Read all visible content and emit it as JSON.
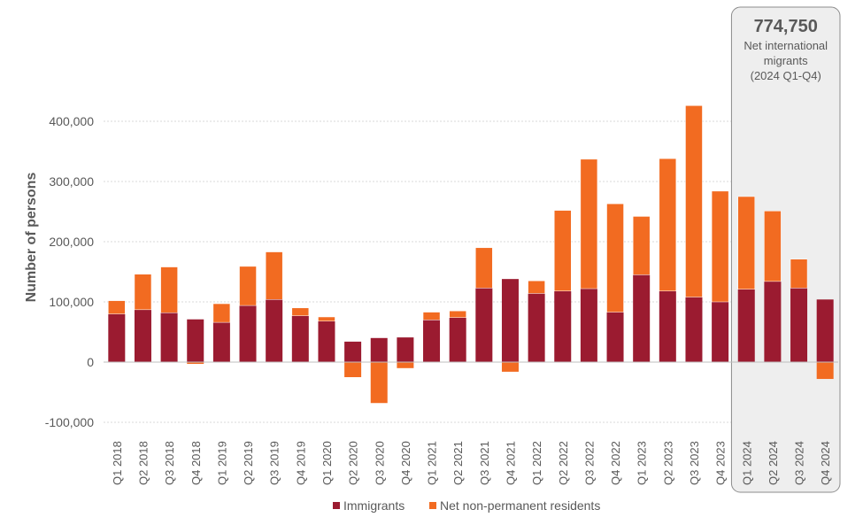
{
  "chart_data": {
    "type": "bar",
    "stacked": true,
    "ylabel": "Number of persons",
    "ylim": [
      -100000,
      440000
    ],
    "yticks": [
      -100000,
      0,
      100000,
      200000,
      300000,
      400000
    ],
    "ytick_labels": [
      "-100,000",
      "0",
      "100,000",
      "200,000",
      "300,000",
      "400,000"
    ],
    "grid": true,
    "legend_position": "bottom",
    "categories": [
      "Q1 2018",
      "Q2 2018",
      "Q3 2018",
      "Q4 2018",
      "Q1 2019",
      "Q2 2019",
      "Q3 2019",
      "Q4 2019",
      "Q1 2020",
      "Q2 2020",
      "Q3 2020",
      "Q4 2020",
      "Q1 2021",
      "Q2 2021",
      "Q3 2021",
      "Q4 2021",
      "Q1 2022",
      "Q2 2022",
      "Q3 2022",
      "Q4 2022",
      "Q1 2023",
      "Q2 2023",
      "Q3 2023",
      "Q4 2023",
      "Q1 2024",
      "Q2 2024",
      "Q3 2024",
      "Q4 2024"
    ],
    "series": [
      {
        "name": "Immigrants",
        "color": "#9b1b30",
        "values": [
          80000,
          87000,
          82000,
          71000,
          66000,
          94000,
          104000,
          77000,
          68000,
          34000,
          40000,
          41000,
          70000,
          74000,
          123000,
          138000,
          114000,
          118000,
          122000,
          83000,
          145000,
          118000,
          108000,
          100000,
          121000,
          134000,
          123000,
          104000
        ]
      },
      {
        "name": "Net non-permanent residents",
        "color": "#f26b21",
        "values": [
          22000,
          59000,
          76000,
          -3000,
          31000,
          65000,
          79000,
          13000,
          7000,
          -25000,
          -68000,
          -10000,
          13000,
          11000,
          67000,
          -16000,
          21000,
          134000,
          215000,
          180000,
          97000,
          220000,
          318000,
          184000,
          154000,
          117000,
          48000,
          -28000
        ]
      }
    ],
    "highlight": {
      "value": "774,750",
      "line1": "Net international",
      "line2": "migrants",
      "line3": "(2024 Q1-Q4)",
      "from_category": "Q1 2024",
      "to_category": "Q4 2024"
    }
  }
}
